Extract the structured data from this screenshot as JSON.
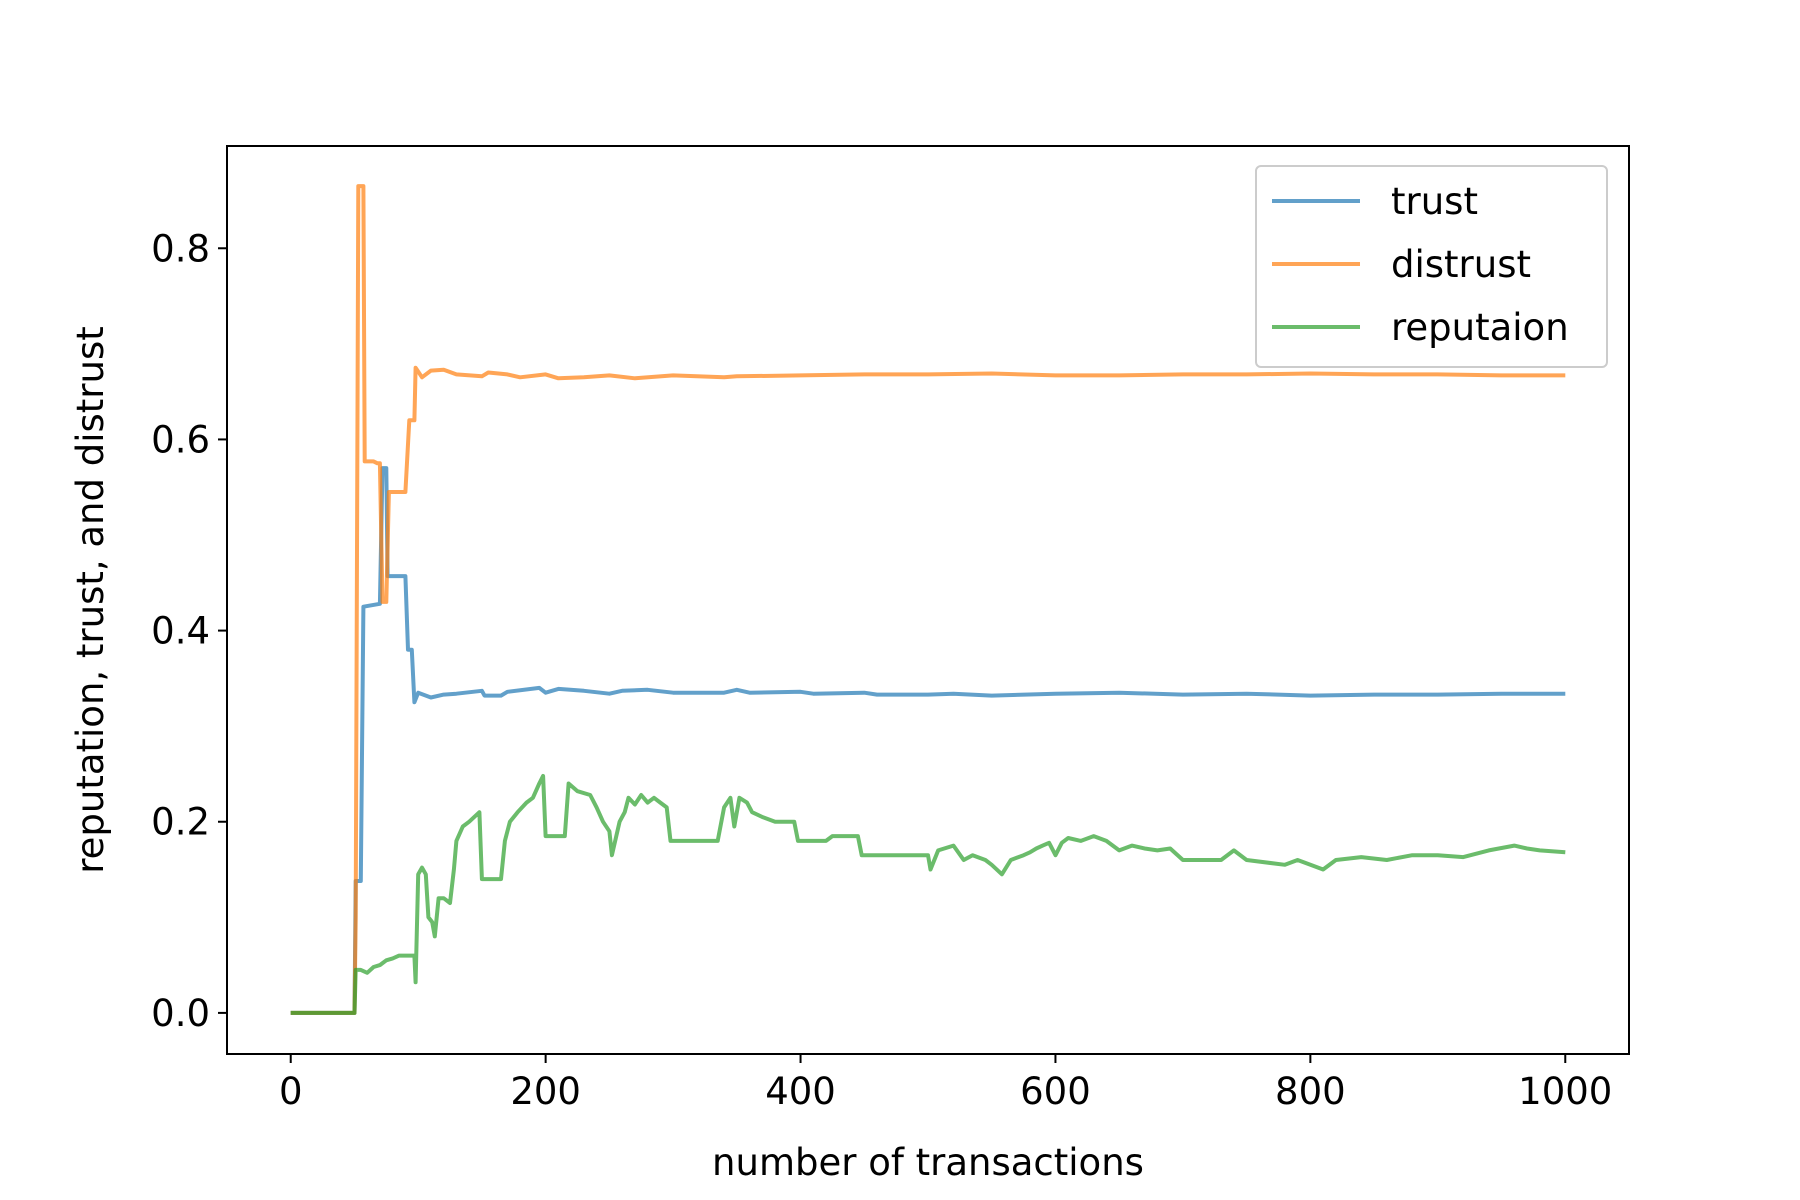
{
  "chart_data": {
    "type": "line",
    "title": "",
    "xlabel": "number of transactions",
    "ylabel": "reputation, trust, and distrust",
    "xlim": [
      -50,
      1050
    ],
    "ylim": [
      -0.043,
      0.907
    ],
    "xticks": [
      0,
      200,
      400,
      600,
      800,
      1000
    ],
    "xtick_labels": [
      "0",
      "200",
      "400",
      "600",
      "800",
      "1000"
    ],
    "yticks": [
      0.0,
      0.2,
      0.4,
      0.6,
      0.8
    ],
    "ytick_labels": [
      "0.0",
      "0.2",
      "0.4",
      "0.6",
      "0.8"
    ],
    "grid": false,
    "legend_position": "top-right",
    "series": [
      {
        "name": "trust",
        "color": "#1f77b4",
        "points": [
          [
            0,
            0
          ],
          [
            50,
            0
          ],
          [
            51,
            0.138
          ],
          [
            55,
            0.138
          ],
          [
            57,
            0.425
          ],
          [
            70,
            0.428
          ],
          [
            72,
            0.57
          ],
          [
            75,
            0.57
          ],
          [
            76,
            0.457
          ],
          [
            90,
            0.457
          ],
          [
            92,
            0.38
          ],
          [
            95,
            0.38
          ],
          [
            97,
            0.325
          ],
          [
            100,
            0.335
          ],
          [
            110,
            0.33
          ],
          [
            120,
            0.333
          ],
          [
            130,
            0.334
          ],
          [
            150,
            0.337
          ],
          [
            152,
            0.332
          ],
          [
            165,
            0.332
          ],
          [
            170,
            0.336
          ],
          [
            195,
            0.34
          ],
          [
            200,
            0.335
          ],
          [
            210,
            0.339
          ],
          [
            230,
            0.337
          ],
          [
            250,
            0.334
          ],
          [
            260,
            0.337
          ],
          [
            280,
            0.338
          ],
          [
            300,
            0.335
          ],
          [
            340,
            0.335
          ],
          [
            350,
            0.338
          ],
          [
            360,
            0.335
          ],
          [
            400,
            0.336
          ],
          [
            410,
            0.334
          ],
          [
            450,
            0.335
          ],
          [
            460,
            0.333
          ],
          [
            500,
            0.333
          ],
          [
            520,
            0.334
          ],
          [
            550,
            0.332
          ],
          [
            600,
            0.334
          ],
          [
            650,
            0.335
          ],
          [
            700,
            0.333
          ],
          [
            750,
            0.334
          ],
          [
            800,
            0.332
          ],
          [
            850,
            0.333
          ],
          [
            900,
            0.333
          ],
          [
            950,
            0.334
          ],
          [
            1000,
            0.334
          ]
        ]
      },
      {
        "name": "distrust",
        "color": "#ff7f0e",
        "points": [
          [
            0,
            0
          ],
          [
            50,
            0
          ],
          [
            51,
            0.1
          ],
          [
            53,
            0.865
          ],
          [
            57,
            0.865
          ],
          [
            58,
            0.577
          ],
          [
            65,
            0.577
          ],
          [
            68,
            0.575
          ],
          [
            70,
            0.575
          ],
          [
            72,
            0.43
          ],
          [
            75,
            0.43
          ],
          [
            77,
            0.545
          ],
          [
            90,
            0.545
          ],
          [
            93,
            0.62
          ],
          [
            97,
            0.62
          ],
          [
            98,
            0.675
          ],
          [
            103,
            0.665
          ],
          [
            110,
            0.672
          ],
          [
            120,
            0.673
          ],
          [
            130,
            0.668
          ],
          [
            150,
            0.666
          ],
          [
            155,
            0.67
          ],
          [
            170,
            0.668
          ],
          [
            180,
            0.665
          ],
          [
            200,
            0.668
          ],
          [
            210,
            0.664
          ],
          [
            230,
            0.665
          ],
          [
            250,
            0.667
          ],
          [
            270,
            0.664
          ],
          [
            300,
            0.667
          ],
          [
            340,
            0.665
          ],
          [
            350,
            0.666
          ],
          [
            400,
            0.667
          ],
          [
            450,
            0.668
          ],
          [
            500,
            0.668
          ],
          [
            550,
            0.669
          ],
          [
            600,
            0.667
          ],
          [
            650,
            0.667
          ],
          [
            700,
            0.668
          ],
          [
            750,
            0.668
          ],
          [
            800,
            0.669
          ],
          [
            850,
            0.668
          ],
          [
            900,
            0.668
          ],
          [
            950,
            0.667
          ],
          [
            1000,
            0.667
          ]
        ]
      },
      {
        "name": "reputaion",
        "color": "#2ca02c",
        "points": [
          [
            0,
            0
          ],
          [
            50,
            0
          ],
          [
            51,
            0.045
          ],
          [
            55,
            0.045
          ],
          [
            60,
            0.042
          ],
          [
            65,
            0.048
          ],
          [
            70,
            0.05
          ],
          [
            75,
            0.055
          ],
          [
            80,
            0.057
          ],
          [
            85,
            0.06
          ],
          [
            97,
            0.06
          ],
          [
            98,
            0.032
          ],
          [
            100,
            0.145
          ],
          [
            103,
            0.152
          ],
          [
            106,
            0.145
          ],
          [
            108,
            0.1
          ],
          [
            111,
            0.095
          ],
          [
            113,
            0.08
          ],
          [
            116,
            0.12
          ],
          [
            120,
            0.12
          ],
          [
            125,
            0.115
          ],
          [
            128,
            0.15
          ],
          [
            130,
            0.18
          ],
          [
            135,
            0.195
          ],
          [
            140,
            0.2
          ],
          [
            148,
            0.21
          ],
          [
            150,
            0.14
          ],
          [
            165,
            0.14
          ],
          [
            168,
            0.18
          ],
          [
            172,
            0.2
          ],
          [
            178,
            0.21
          ],
          [
            185,
            0.22
          ],
          [
            190,
            0.225
          ],
          [
            195,
            0.24
          ],
          [
            198,
            0.248
          ],
          [
            200,
            0.185
          ],
          [
            215,
            0.185
          ],
          [
            218,
            0.24
          ],
          [
            225,
            0.232
          ],
          [
            235,
            0.228
          ],
          [
            240,
            0.215
          ],
          [
            245,
            0.2
          ],
          [
            250,
            0.19
          ],
          [
            252,
            0.165
          ],
          [
            258,
            0.2
          ],
          [
            262,
            0.21
          ],
          [
            265,
            0.225
          ],
          [
            270,
            0.218
          ],
          [
            275,
            0.228
          ],
          [
            280,
            0.22
          ],
          [
            285,
            0.225
          ],
          [
            290,
            0.22
          ],
          [
            295,
            0.215
          ],
          [
            298,
            0.18
          ],
          [
            335,
            0.18
          ],
          [
            340,
            0.215
          ],
          [
            345,
            0.225
          ],
          [
            348,
            0.195
          ],
          [
            352,
            0.225
          ],
          [
            358,
            0.22
          ],
          [
            362,
            0.21
          ],
          [
            370,
            0.205
          ],
          [
            380,
            0.2
          ],
          [
            395,
            0.2
          ],
          [
            398,
            0.18
          ],
          [
            420,
            0.18
          ],
          [
            425,
            0.185
          ],
          [
            445,
            0.185
          ],
          [
            448,
            0.165
          ],
          [
            500,
            0.165
          ],
          [
            502,
            0.15
          ],
          [
            508,
            0.17
          ],
          [
            520,
            0.175
          ],
          [
            528,
            0.16
          ],
          [
            535,
            0.165
          ],
          [
            545,
            0.16
          ],
          [
            550,
            0.155
          ],
          [
            558,
            0.145
          ],
          [
            565,
            0.16
          ],
          [
            575,
            0.165
          ],
          [
            580,
            0.168
          ],
          [
            585,
            0.172
          ],
          [
            590,
            0.175
          ],
          [
            595,
            0.178
          ],
          [
            600,
            0.165
          ],
          [
            605,
            0.178
          ],
          [
            610,
            0.183
          ],
          [
            620,
            0.18
          ],
          [
            630,
            0.185
          ],
          [
            640,
            0.18
          ],
          [
            650,
            0.17
          ],
          [
            660,
            0.175
          ],
          [
            670,
            0.172
          ],
          [
            680,
            0.17
          ],
          [
            690,
            0.172
          ],
          [
            700,
            0.16
          ],
          [
            730,
            0.16
          ],
          [
            740,
            0.17
          ],
          [
            750,
            0.16
          ],
          [
            780,
            0.155
          ],
          [
            790,
            0.16
          ],
          [
            800,
            0.155
          ],
          [
            810,
            0.15
          ],
          [
            820,
            0.16
          ],
          [
            840,
            0.163
          ],
          [
            860,
            0.16
          ],
          [
            880,
            0.165
          ],
          [
            900,
            0.165
          ],
          [
            920,
            0.163
          ],
          [
            940,
            0.17
          ],
          [
            960,
            0.175
          ],
          [
            970,
            0.172
          ],
          [
            980,
            0.17
          ],
          [
            1000,
            0.168
          ]
        ]
      }
    ]
  }
}
